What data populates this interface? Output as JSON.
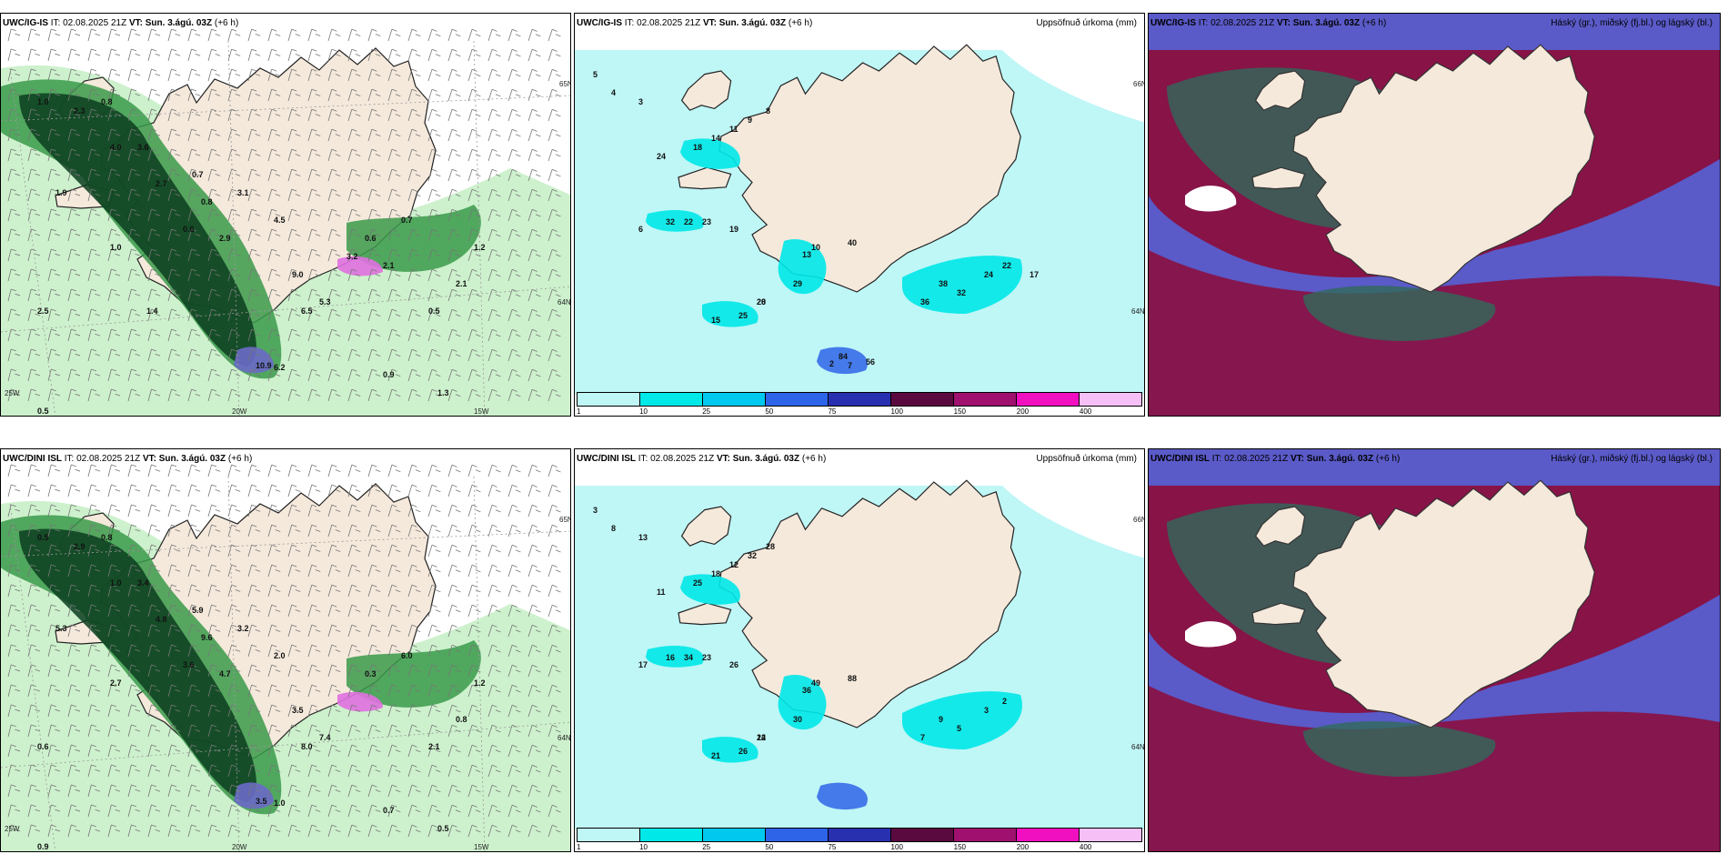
{
  "panels": [
    {
      "model": "UWC/IG-IS",
      "it_label": "IT:",
      "it_value": "02.08.2025 21Z",
      "vt_label": "VT:",
      "vt_value": "Sun. 3.ágú. 03Z",
      "lead": "(+6 h)",
      "right_title": "",
      "type": "wind-precip",
      "axis_labels": [
        "20W",
        "15W",
        "65N",
        "64N",
        "25W"
      ],
      "values": [
        "1.0",
        "2.3",
        "0.8",
        "4.0",
        "3.6",
        "1.9",
        "2.7",
        "0.7",
        "1.0",
        "0.6",
        "2.9",
        "3.1",
        "4.5",
        "9.0",
        "6.5",
        "5.3",
        "10.9",
        "6.2",
        "2.5",
        "0.5",
        "0.9",
        "1.3",
        "2.1",
        "1.2",
        "0.5",
        "0.8",
        "0.7",
        "0.6",
        "3.2",
        "2.1",
        "1.4"
      ]
    },
    {
      "model": "UWC/IG-IS",
      "it_label": "IT:",
      "it_value": "02.08.2025 21Z",
      "vt_label": "VT:",
      "vt_value": "Sun. 3.ágú. 03Z",
      "lead": "(+6 h)",
      "right_title": "Uppsöfnuð úrkoma (mm)",
      "type": "precip",
      "axis_labels": [
        "66N",
        "64N"
      ],
      "values": [
        "5",
        "4",
        "3",
        "24",
        "18",
        "14",
        "11",
        "9",
        "8",
        "6",
        "32",
        "22",
        "23",
        "19",
        "13",
        "29",
        "28",
        "15",
        "25",
        "20",
        "10",
        "40",
        "38",
        "36",
        "32",
        "24",
        "22",
        "17",
        "7",
        "2",
        "84",
        "56"
      ],
      "legend_ticks": [
        "1",
        "10",
        "25",
        "50",
        "75",
        "100",
        "150",
        "200",
        "400"
      ],
      "legend_colors": [
        "#bff6f6",
        "#00e8e8",
        "#00c8ee",
        "#2e64e8",
        "#2830b0",
        "#5a0a3e",
        "#a0106e",
        "#f010c0",
        "#f6c0f6"
      ]
    },
    {
      "model": "UWC/IG-IS",
      "it_label": "IT:",
      "it_value": "02.08.2025 21Z",
      "vt_label": "VT:",
      "vt_value": "Sun. 3.ágú. 03Z",
      "lead": "(+6 h)",
      "right_title": "Háský (gr.), miðský (fj.bl.) og lágský (bl.)",
      "type": "cloud"
    },
    {
      "model": "UWC/DINI ISL",
      "it_label": "IT:",
      "it_value": "02.08.2025 21Z",
      "vt_label": "VT:",
      "vt_value": "Sun. 3.ágú. 03Z",
      "lead": "(+6 h)",
      "right_title": "",
      "type": "wind-precip",
      "axis_labels": [
        "20W",
        "15W",
        "65N",
        "64N",
        "25W"
      ],
      "values": [
        "0.5",
        "2.9",
        "0.8",
        "1.0",
        "3.4",
        "5.3",
        "4.8",
        "5.9",
        "2.7",
        "3.6",
        "4.7",
        "3.2",
        "2.0",
        "3.5",
        "8.0",
        "7.4",
        "3.5",
        "1.0",
        "0.6",
        "0.9",
        "0.7",
        "0.5",
        "0.8",
        "1.2",
        "2.1",
        "9.6",
        "6.0",
        "0.3"
      ]
    },
    {
      "model": "UWC/DINI ISL",
      "it_label": "IT:",
      "it_value": "02.08.2025 21Z",
      "vt_label": "VT:",
      "vt_value": "Sun. 3.ágú. 03Z",
      "lead": "(+6 h)",
      "right_title": "Uppsöfnuð úrkoma (mm)",
      "type": "precip",
      "axis_labels": [
        "66N",
        "64N"
      ],
      "values": [
        "3",
        "8",
        "13",
        "11",
        "25",
        "18",
        "12",
        "32",
        "28",
        "17",
        "16",
        "34",
        "23",
        "26",
        "36",
        "30",
        "22",
        "21",
        "26",
        "14",
        "49",
        "88",
        "9",
        "7",
        "5",
        "3",
        "2"
      ],
      "legend_ticks": [
        "1",
        "10",
        "25",
        "50",
        "75",
        "100",
        "150",
        "200",
        "400"
      ],
      "legend_colors": [
        "#bff6f6",
        "#00e8e8",
        "#00c8ee",
        "#2e64e8",
        "#2830b0",
        "#5a0a3e",
        "#a0106e",
        "#f010c0",
        "#f6c0f6"
      ]
    },
    {
      "model": "UWC/DINI ISL",
      "it_label": "IT:",
      "it_value": "02.08.2025 21Z",
      "vt_label": "VT:",
      "vt_value": "Sun. 3.ágú. 03Z",
      "lead": "(+6 h)",
      "right_title": "Háský (gr.), miðský (fj.bl.) og lágský (bl.)",
      "type": "cloud"
    }
  ],
  "colors": {
    "land": "#f5e9dc",
    "sea": "#ffffff",
    "precip_light": "#c8f0c8",
    "precip_mid": "#3a9a4a",
    "precip_dark": "#0b3d1e",
    "precip_blue": "#6a6ac8",
    "precip_pink": "#e070e0",
    "cyan_light": "#bff6f6",
    "cyan": "#00e8e8",
    "cloud_high": "#2f6a5a",
    "cloud_mid": "#8a1040",
    "cloud_low": "#5a5ac8"
  }
}
